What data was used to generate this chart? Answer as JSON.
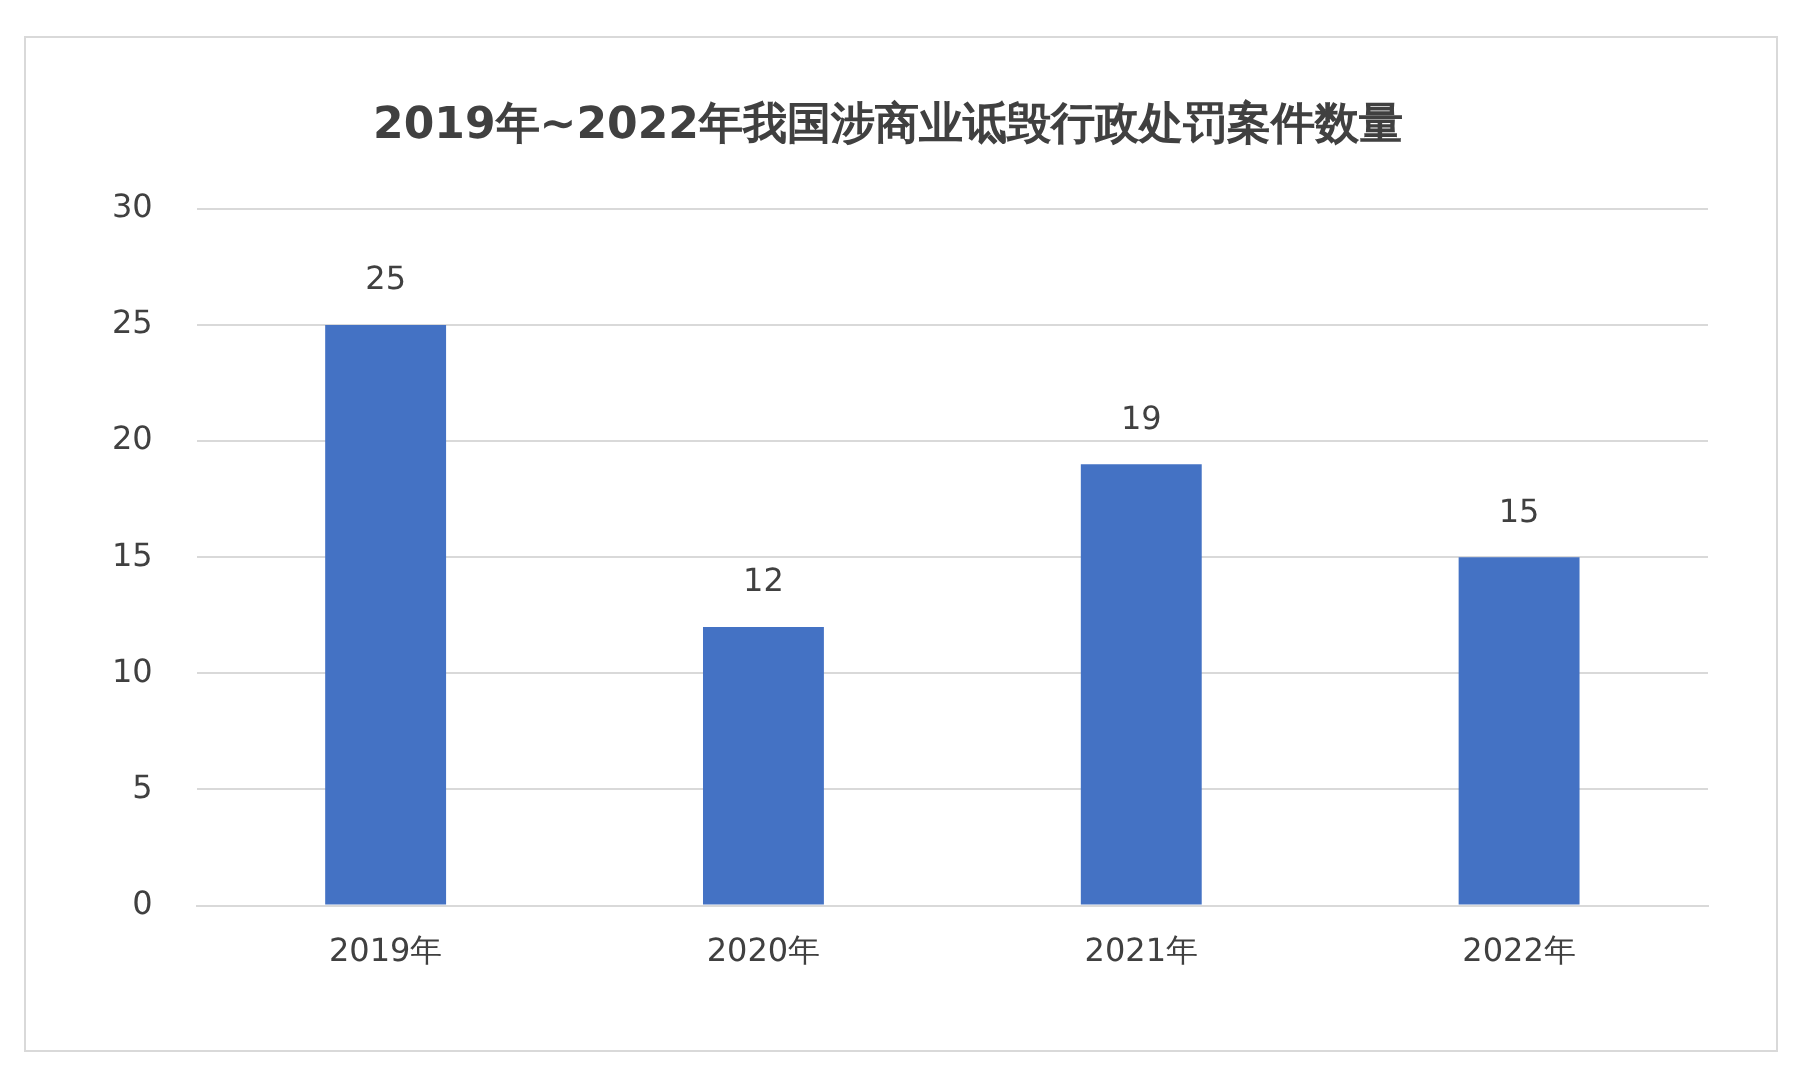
{
  "chart_data": {
    "type": "bar",
    "title": "2019年~2022年我国涉商业诋毁行政处罚案件数量",
    "categories": [
      "2019年",
      "2020年",
      "2021年",
      "2022年"
    ],
    "values": [
      25,
      12,
      19,
      15
    ],
    "color": "#4472c4",
    "ylim": [
      0,
      30
    ],
    "yticks": [
      0,
      5,
      10,
      15,
      20,
      25,
      30
    ],
    "grid": "y",
    "legend": false,
    "data_labels": true
  }
}
